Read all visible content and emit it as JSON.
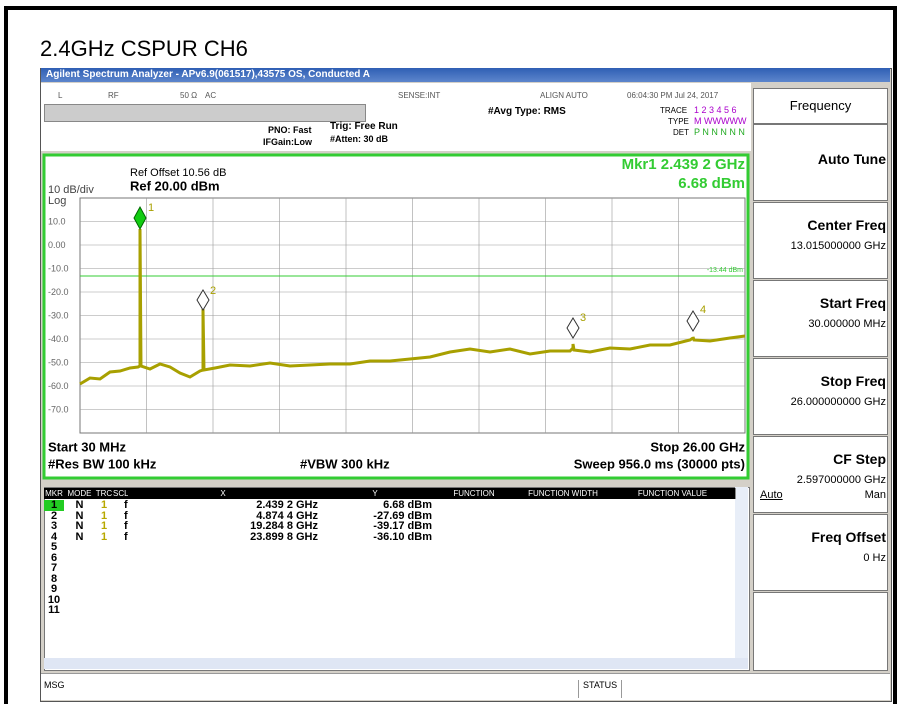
{
  "title": "2.4GHz CSPUR CH6",
  "window_title": "Agilent Spectrum Analyzer - APv6.9(061517),43575 OS, Conducted A",
  "status_bar": {
    "items": [
      "L",
      "RF",
      "50 Ω",
      "AC",
      "SENSE:INT",
      "ALIGN AUTO",
      "06:04:30 PM Jul 24, 2017"
    ]
  },
  "settings": {
    "pno": "PNO: Fast",
    "ifgain": "IFGain:Low",
    "trig": "Trig: Free Run",
    "atten": "#Atten: 30 dB",
    "avg": "#Avg Type: RMS",
    "trace_label": "TRACE",
    "trace": "1 2 3 4 5 6",
    "type_label": "TYPE",
    "type": "M WWWWW",
    "det_label": "DET",
    "det": "P N N N N N"
  },
  "plot": {
    "ref_offset": "Ref Offset 10.56 dB",
    "scale": "10 dB/div",
    "ref": "Ref 20.00 dBm",
    "log": "Log",
    "marker_readout": [
      "Mkr1 2.439 2 GHz",
      "6.68 dBm"
    ],
    "yticks": [
      "10.0",
      "0.00",
      "-10.0",
      "-20.0",
      "-30.0",
      "-40.0",
      "-50.0",
      "-60.0",
      "-70.0"
    ],
    "display_line": "-13.44 dBm",
    "marker_labels": [
      "1",
      "2",
      "3",
      "4"
    ],
    "start": "Start 30 MHz",
    "stop": "Stop 26.00 GHz",
    "rbw": "#Res BW 100 kHz",
    "vbw": "#VBW 300 kHz",
    "sweep": "Sweep 956.0 ms (30000 pts)"
  },
  "table": {
    "headers": [
      "MKR",
      "MODE",
      "TRC",
      "SCL",
      "X",
      "Y",
      "FUNCTION",
      "FUNCTION WIDTH",
      "FUNCTION VALUE"
    ],
    "rows": [
      [
        "1",
        "N",
        "1",
        "f",
        "2.439 2 GHz",
        "6.68 dBm"
      ],
      [
        "2",
        "N",
        "1",
        "f",
        "4.874 4 GHz",
        "-27.69 dBm"
      ],
      [
        "3",
        "N",
        "1",
        "f",
        "19.284 8 GHz",
        "-39.17 dBm"
      ],
      [
        "4",
        "N",
        "1",
        "f",
        "23.899 8 GHz",
        "-36.10 dBm"
      ],
      [
        "5"
      ],
      [
        "6"
      ],
      [
        "7"
      ],
      [
        "8"
      ],
      [
        "9"
      ],
      [
        "10"
      ],
      [
        "11"
      ]
    ]
  },
  "bottom": {
    "msg": "MSG",
    "status": "STATUS"
  },
  "softkeys": {
    "header": "Frequency",
    "keys": [
      {
        "label": "Auto Tune"
      },
      {
        "label": "Center Freq",
        "value": "13.015000000 GHz"
      },
      {
        "label": "Start Freq",
        "value": "30.000000 MHz"
      },
      {
        "label": "Stop Freq",
        "value": "26.000000000 GHz"
      },
      {
        "label": "CF Step",
        "value": "2.597000000 GHz",
        "options": [
          "Auto",
          "Man"
        ]
      },
      {
        "label": "Freq Offset",
        "value": "0 Hz"
      }
    ]
  }
}
